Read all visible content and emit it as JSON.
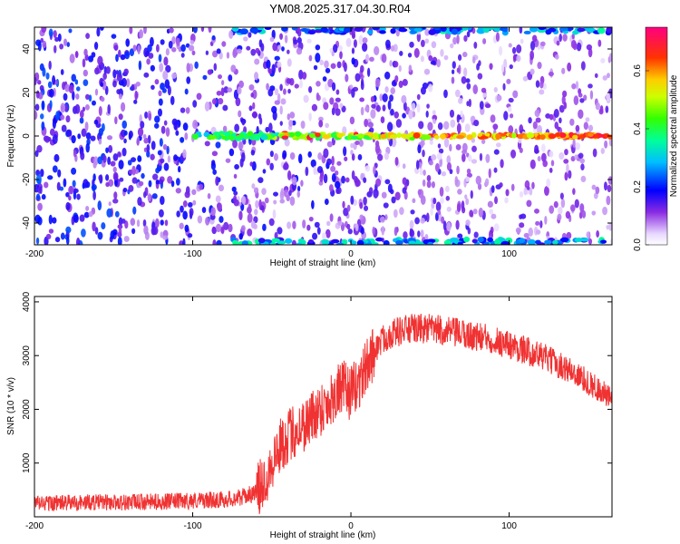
{
  "title": "YM08.2025.317.04.30.R04",
  "chart_data": [
    {
      "type": "heatmap",
      "xlabel": "Height of straight line (km)",
      "ylabel": "Frequency (Hz)",
      "xlim": [
        -200,
        165
      ],
      "ylim": [
        -50,
        50
      ],
      "xticks": [
        -200,
        -100,
        0,
        100
      ],
      "yticks": [
        -40,
        -20,
        0,
        20,
        40
      ],
      "colorbar": {
        "label": "Normalized spectral amplitude",
        "range": [
          0.0,
          0.75
        ],
        "ticks": [
          0.0,
          0.2,
          0.4,
          0.6
        ]
      },
      "features": {
        "signal_line_frequency_hz": 0,
        "signal_starts_km": -100,
        "peak_amplitude": 0.75,
        "aliased_bands_hz": [
          50,
          -50
        ]
      }
    },
    {
      "type": "line",
      "xlabel": "Height of straight line (km)",
      "ylabel": "SNR (10 * v/v)",
      "xlim": [
        -200,
        165
      ],
      "ylim": [
        0,
        4100
      ],
      "xticks": [
        -200,
        -100,
        0,
        100
      ],
      "yticks": [
        1000,
        2000,
        3000,
        4000
      ],
      "color": "#f03232",
      "series": [
        {
          "x": [
            -200,
            -180,
            -160,
            -140,
            -120,
            -100,
            -80,
            -70,
            -60,
            -55,
            -50,
            -45,
            -40,
            -35,
            -30,
            -25,
            -20,
            -15,
            -10,
            -5,
            0,
            5,
            10,
            15,
            20,
            25,
            30,
            40,
            50,
            60,
            70,
            80,
            90,
            100,
            110,
            120,
            130,
            140,
            150,
            160,
            165
          ],
          "values": [
            250,
            260,
            270,
            270,
            280,
            300,
            320,
            360,
            450,
            650,
            1000,
            1300,
            1500,
            1600,
            1700,
            1850,
            2000,
            2100,
            2300,
            2400,
            2300,
            2500,
            2800,
            3100,
            3300,
            3400,
            3450,
            3500,
            3500,
            3450,
            3400,
            3350,
            3300,
            3200,
            3100,
            3000,
            2850,
            2700,
            2500,
            2300,
            2150
          ]
        }
      ]
    }
  ]
}
